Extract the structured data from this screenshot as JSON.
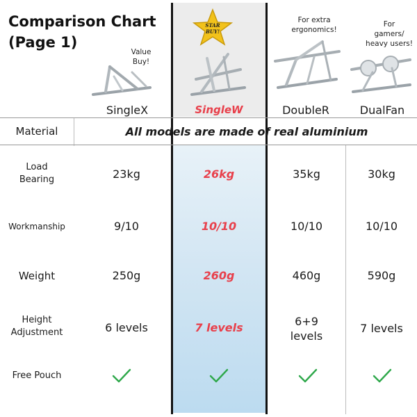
{
  "header": {
    "title": "Comparison Chart\n(Page 1)"
  },
  "products": [
    {
      "name": "SingleX",
      "tagline": "Value\nBuy!",
      "highlight": false
    },
    {
      "name": "SingleW",
      "tagline": "",
      "badge": "STAR\nBUY!",
      "highlight": true
    },
    {
      "name": "DoubleR",
      "tagline": "For extra\nergonomics!",
      "highlight": false
    },
    {
      "name": "DualFan",
      "tagline": "For\ngamers/\nheavy users!",
      "highlight": false
    }
  ],
  "badge": {
    "line1": "STAR",
    "line2": "BUY!"
  },
  "material": {
    "label": "Material",
    "value": "All models are made of real aluminium"
  },
  "rows": [
    {
      "label": "Load\nBearing",
      "values": [
        "23kg",
        "26kg",
        "35kg",
        "30kg"
      ]
    },
    {
      "label": "Workmanship",
      "values": [
        "9/10",
        "10/10",
        "10/10",
        "10/10"
      ]
    },
    {
      "label": "Weight",
      "values": [
        "250g",
        "260g",
        "460g",
        "590g"
      ]
    },
    {
      "label": "Height\nAdjustment",
      "values": [
        "6 levels",
        "7 levels",
        "6+9\nlevels",
        "7 levels"
      ]
    }
  ],
  "pouch": {
    "label": "Free Pouch"
  },
  "colors": {
    "highlight_text": "#e8404b",
    "check": "#2ea84a",
    "divider": "#111111",
    "star": "#f2c21b"
  }
}
